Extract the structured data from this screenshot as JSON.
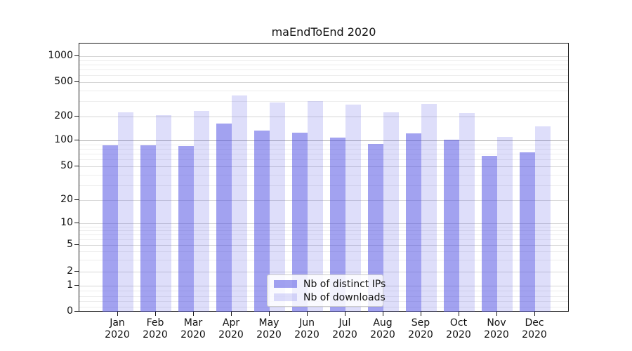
{
  "chart_data": {
    "type": "bar",
    "title": "maEndToEnd 2020",
    "x_axis": {
      "months": [
        "Jan",
        "Feb",
        "Mar",
        "Apr",
        "May",
        "Jun",
        "Jul",
        "Aug",
        "Sep",
        "Oct",
        "Nov",
        "Dec"
      ],
      "year": "2020"
    },
    "y_axis": {
      "scale": "symlog",
      "major_ticks": [
        0,
        1,
        2,
        5,
        10,
        20,
        50,
        100,
        200,
        500,
        1000
      ],
      "minor_ticks": [
        0.2,
        0.4,
        0.6,
        0.8,
        3,
        4,
        6,
        7,
        8,
        9,
        30,
        40,
        60,
        70,
        80,
        90,
        300,
        400,
        600,
        700,
        800,
        900
      ],
      "reference_line_value": 100,
      "grid": true
    },
    "series": [
      {
        "name": "Nb of distinct IPs",
        "color": "rgba(70,70,225,0.5)",
        "values": [
          90,
          90,
          88,
          165,
          135,
          128,
          110,
          92,
          125,
          105,
          68,
          74
        ]
      },
      {
        "name": "Nb of downloads",
        "color": "rgba(70,70,225,0.18)",
        "values": [
          230,
          210,
          235,
          355,
          295,
          305,
          280,
          230,
          285,
          225,
          113,
          152
        ]
      }
    ],
    "legend": {
      "position": "lower-center-inside"
    }
  },
  "colors": {
    "background": "#ffffff",
    "axis": "#1a1a1a",
    "grid_major": "#d6d6d6",
    "grid_minor": "#ededed",
    "reference_line": "#b0b0b0",
    "legend_border": "#cccccc",
    "text": "#111111"
  }
}
